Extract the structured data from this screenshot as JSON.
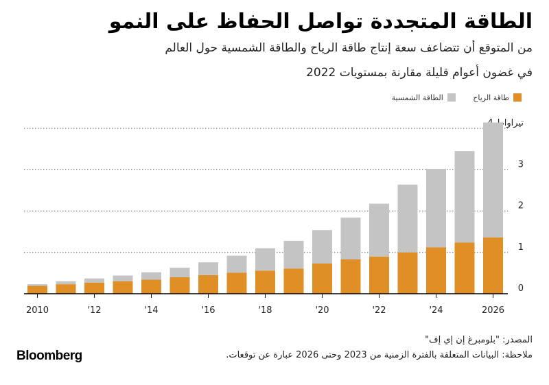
{
  "title": "الطاقة المتجددة تواصل الحفاظ على النمو",
  "subtitle_line1": "من المتوقع أن تتضاعف سعة إنتاج طاقة الرياح والطاقة الشمسية حول العالم",
  "subtitle_line2": "في غضون أعوام قليلة مقارنة بمستويات 2022",
  "footer": {
    "source": "المصدر: \"بلومبرغ إن إي إف\"",
    "note": "ملاحظة: البيانات المتعلقة بالفترة الزمنية من 2023 وحتى 2026 عبارة عن توقعات."
  },
  "logo": "Bloomberg",
  "colors": {
    "wind": "#df8f25",
    "solar": "#c4c4c4",
    "grid": "#555555"
  },
  "chart_data": {
    "type": "bar",
    "stacked": true,
    "categories": [
      "2010",
      "2011",
      "2012",
      "2013",
      "2014",
      "2015",
      "2016",
      "2017",
      "2018",
      "2019",
      "2020",
      "2021",
      "2022",
      "2023",
      "2024",
      "2025",
      "2026"
    ],
    "x_tick_labels": [
      {
        "category": "2010",
        "label": "2010"
      },
      {
        "category": "2012",
        "label": "'12"
      },
      {
        "category": "2014",
        "label": "'14"
      },
      {
        "category": "2016",
        "label": "'16"
      },
      {
        "category": "2018",
        "label": "'18"
      },
      {
        "category": "2020",
        "label": "'20"
      },
      {
        "category": "2022",
        "label": "'22"
      },
      {
        "category": "2024",
        "label": "'24"
      },
      {
        "category": "2026",
        "label": "2026"
      }
    ],
    "series": [
      {
        "name": "طاقة الرياح",
        "color": "#df8f25",
        "values": [
          0.19,
          0.23,
          0.27,
          0.3,
          0.34,
          0.4,
          0.45,
          0.51,
          0.56,
          0.61,
          0.73,
          0.83,
          0.9,
          1.0,
          1.12,
          1.24,
          1.36
        ]
      },
      {
        "name": "الطاقة الشمسية",
        "color": "#c4c4c4",
        "values": [
          0.04,
          0.07,
          0.1,
          0.14,
          0.18,
          0.23,
          0.31,
          0.41,
          0.54,
          0.67,
          0.81,
          1.01,
          1.28,
          1.64,
          1.9,
          2.21,
          2.78
        ]
      }
    ],
    "y_ticks": [
      "0",
      "1",
      "2",
      "3",
      "4 تيراواط"
    ],
    "ylim": [
      0,
      4
    ],
    "grid": true
  }
}
